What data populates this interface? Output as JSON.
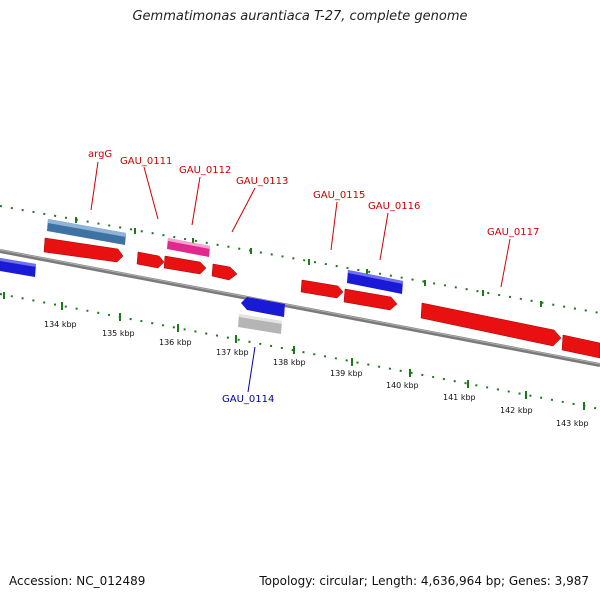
{
  "title": "Gemmatimonas aurantiaca T-27, complete genome",
  "footer": {
    "accession": "Accession: NC_012489",
    "summary": "Topology: circular; Length: 4,636,964 bp; Genes: 3,987"
  },
  "ticks": [
    "134 kbp",
    "135 kbp",
    "136 kbp",
    "137 kbp",
    "138 kbp",
    "139 kbp",
    "140 kbp",
    "141 kbp",
    "142 kbp",
    "143 kbp"
  ],
  "gene_labels": [
    {
      "name": "argG",
      "strand": "forward"
    },
    {
      "name": "GAU_0111",
      "strand": "forward"
    },
    {
      "name": "GAU_0112",
      "strand": "forward"
    },
    {
      "name": "GAU_0113",
      "strand": "forward"
    },
    {
      "name": "GAU_0115",
      "strand": "forward"
    },
    {
      "name": "GAU_0116",
      "strand": "forward"
    },
    {
      "name": "GAU_0117",
      "strand": "forward"
    },
    {
      "name": "GAU_0114",
      "strand": "reverse"
    }
  ],
  "colors": {
    "forward_label": "#cc0000",
    "reverse_label": "#0000aa",
    "cds": "#ee1111",
    "rna": "#4a7fb0",
    "pink": "#e0288f",
    "blue": "#1a1ad6",
    "grey": "#b8b8b8",
    "axis": "#808080",
    "dots": "#1a7a1a"
  }
}
